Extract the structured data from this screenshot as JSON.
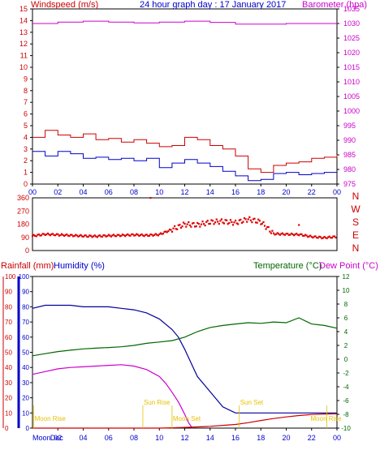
{
  "chart_data": [
    {
      "type": "line",
      "title": "24 hour graph day : 17 January 2017",
      "left_axis_label": "Windspeed (m/s)",
      "right_axis_label": "Barometer (hpa)",
      "left_ylim": [
        0,
        15
      ],
      "right_ylim": [
        975,
        1035
      ],
      "left_ticks": [
        "0",
        "1",
        "2",
        "3",
        "4",
        "5",
        "6",
        "7",
        "8",
        "9",
        "10",
        "11",
        "12",
        "13",
        "14",
        "15"
      ],
      "right_ticks": [
        "975",
        "980",
        "985",
        "990",
        "995",
        "1000",
        "1005",
        "1010",
        "1015",
        "1020",
        "1025",
        "1030",
        "1035"
      ],
      "x_ticks": [
        "00",
        "02",
        "04",
        "06",
        "08",
        "10",
        "12",
        "14",
        "16",
        "18",
        "20",
        "22",
        "00"
      ],
      "series": [
        {
          "axis": "right",
          "color": "#cc00cc",
          "x": [
            0,
            2,
            4,
            6,
            8,
            10,
            12,
            14,
            16,
            18,
            20,
            22,
            24
          ],
          "values": [
            1030,
            1030.5,
            1030.8,
            1030.5,
            1030.2,
            1030.5,
            1030.8,
            1030.4,
            1029.8,
            1029.8,
            1030,
            1030,
            1030.1
          ]
        },
        {
          "axis": "left",
          "color": "#cc0000",
          "x": [
            0,
            1,
            2,
            3,
            4,
            5,
            6,
            7,
            8,
            9,
            10,
            11,
            12,
            13,
            14,
            15,
            16,
            17,
            18,
            19,
            20,
            21,
            22,
            23,
            24
          ],
          "values": [
            4.0,
            4.6,
            4.2,
            4.0,
            4.3,
            3.8,
            3.9,
            3.6,
            3.8,
            3.5,
            3.2,
            3.3,
            4.0,
            3.8,
            3.3,
            3.0,
            2.4,
            1.3,
            1.0,
            1.6,
            1.8,
            1.9,
            2.2,
            2.3,
            2.5
          ]
        },
        {
          "axis": "left",
          "color": "#0000cc",
          "x": [
            0,
            1,
            2,
            3,
            4,
            5,
            6,
            7,
            8,
            9,
            10,
            11,
            12,
            13,
            14,
            15,
            16,
            17,
            18,
            19,
            20,
            21,
            22,
            23,
            24
          ],
          "values": [
            2.8,
            2.4,
            2.8,
            2.6,
            2.2,
            2.3,
            2.1,
            2.2,
            2.0,
            2.2,
            1.4,
            1.8,
            2.1,
            1.8,
            1.5,
            1.1,
            0.7,
            0.3,
            0.4,
            0.9,
            1.0,
            0.8,
            0.9,
            1.0,
            1.0
          ]
        }
      ]
    },
    {
      "type": "scatter",
      "ylabel_letters": [
        "N",
        "W",
        "S",
        "E",
        "N"
      ],
      "yticks": [
        "0",
        "90",
        "180",
        "270",
        "360"
      ],
      "ylim": [
        0,
        360
      ],
      "x_ticks": [
        "00",
        "02",
        "04",
        "06",
        "08",
        "10",
        "12",
        "14",
        "16",
        "18",
        "20",
        "22",
        "00"
      ],
      "color": "#dd0000",
      "x": [
        0,
        1,
        2,
        3,
        4,
        5,
        6,
        7,
        8,
        9,
        10,
        11,
        12,
        13,
        14,
        15,
        16,
        17,
        18,
        19,
        20,
        21,
        22,
        23,
        24
      ],
      "values": [
        100,
        112,
        108,
        104,
        100,
        98,
        102,
        104,
        108,
        104,
        110,
        145,
        180,
        175,
        195,
        200,
        190,
        215,
        195,
        115,
        112,
        110,
        95,
        88,
        95
      ],
      "outliers": [
        {
          "x": 9.3,
          "y": 360
        },
        {
          "x": 21.0,
          "y": 175
        }
      ]
    },
    {
      "type": "line",
      "left_label_1": "Rainfall (mm)",
      "left_label_2": "Humidity (%)",
      "right_label_1": "Temperature (°C)",
      "right_label_2": "Dew Point (°C)",
      "rain_ticks": [
        "0",
        "10",
        "20",
        "30",
        "40",
        "50",
        "60",
        "70",
        "80",
        "90",
        "100"
      ],
      "humidity_ticks": [
        "0",
        "10",
        "20",
        "30",
        "40",
        "50",
        "60",
        "70",
        "80",
        "90",
        "100"
      ],
      "temp_ticks": [
        "-10",
        "-8",
        "-6",
        "-4",
        "-2",
        "0",
        "2",
        "4",
        "6",
        "8",
        "10",
        "12"
      ],
      "temp_ylim": [
        -10,
        12
      ],
      "x_ticks": [
        "00",
        "02",
        "04",
        "06",
        "08",
        "10",
        "12",
        "14",
        "16",
        "18",
        "20",
        "22",
        "00"
      ],
      "series": [
        {
          "name": "Humidity (%)",
          "color": "#000099",
          "axis": "humidity",
          "x": [
            0,
            1,
            2,
            3,
            4,
            5,
            6,
            7,
            8,
            9,
            10,
            11,
            11.5,
            12,
            12.5,
            13,
            14,
            15,
            16,
            17,
            18,
            19,
            20,
            21,
            22,
            23,
            24
          ],
          "values": [
            79,
            81,
            81,
            81,
            80,
            80,
            80,
            79,
            78,
            76,
            72,
            65,
            60,
            52,
            43,
            34,
            24,
            14,
            10,
            10,
            10,
            10,
            10,
            10,
            10,
            10,
            10
          ]
        },
        {
          "name": "Temperature (°C)",
          "color": "#006600",
          "axis": "temp",
          "x": [
            0,
            1,
            2,
            3,
            4,
            5,
            6,
            7,
            8,
            9,
            10,
            11,
            12,
            13,
            14,
            15,
            16,
            17,
            18,
            19,
            20,
            21,
            22,
            23,
            24
          ],
          "values": [
            0.5,
            0.8,
            1.1,
            1.3,
            1.5,
            1.6,
            1.7,
            1.8,
            2.0,
            2.3,
            2.5,
            2.7,
            3.2,
            4.0,
            4.6,
            4.9,
            5.1,
            5.3,
            5.2,
            5.4,
            5.3,
            6.0,
            5.1,
            4.9,
            4.5
          ]
        },
        {
          "name": "Dew Point (°C)",
          "color": "#cc00cc",
          "axis": "temp",
          "x": [
            0,
            1,
            2,
            3,
            4,
            5,
            6,
            7,
            8,
            9,
            10,
            10.5,
            11,
            11.5,
            12,
            12.3,
            12.6
          ],
          "values": [
            -2.2,
            -1.8,
            -1.4,
            -1.2,
            -1.1,
            -1.0,
            -0.9,
            -0.8,
            -1.0,
            -1.5,
            -2.5,
            -3.5,
            -4.8,
            -6.2,
            -8.0,
            -9.2,
            -10
          ]
        },
        {
          "name": "Rainfall (mm)",
          "color": "#cc0000",
          "axis": "rain",
          "x": [
            0,
            6,
            10,
            11,
            12,
            13,
            14,
            15,
            16,
            17,
            18,
            19,
            20,
            21,
            22,
            23,
            24
          ],
          "values": [
            0,
            0,
            0,
            0.2,
            0.5,
            0.8,
            1.2,
            1.8,
            2.4,
            3.6,
            5.0,
            6.3,
            7.4,
            8.3,
            9.0,
            9.3,
            9.4
          ]
        }
      ],
      "annotations": [
        {
          "label": "Moon Rise",
          "x": 0.1,
          "color": "#e8c000"
        },
        {
          "label": "Sun Rise",
          "x": 8.7,
          "color": "#e8c000"
        },
        {
          "label": "Moon Set",
          "x": 11.0,
          "color": "#e8c000"
        },
        {
          "label": "Sun Set",
          "x": 16.3,
          "color": "#e8c000"
        },
        {
          "label": "Moon Rise",
          "x": 23.2,
          "color": "#e8c000"
        }
      ],
      "bottom_labels": [
        {
          "label": "Moon",
          "x": 0.0
        },
        {
          "label": "Dec",
          "x": 0.5
        }
      ]
    }
  ]
}
